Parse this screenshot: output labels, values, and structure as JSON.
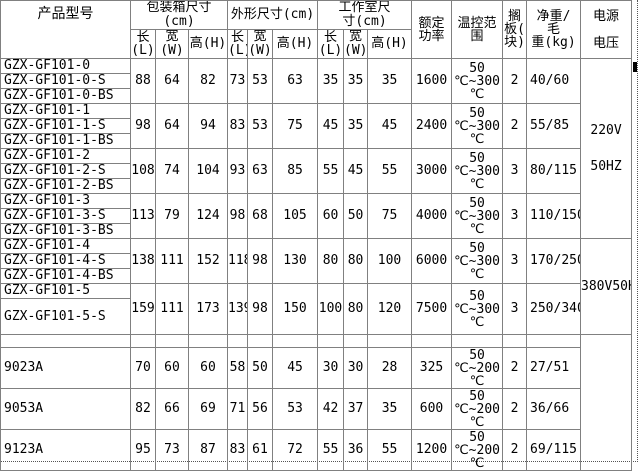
{
  "table": {
    "header": {
      "product_model": "产品型号",
      "packing_group": "包装箱尺寸(cm)",
      "outer_group": "外形尺寸(cm)",
      "chamber_group": "工作室尺\n寸(cm)",
      "rated_power": "额定\n功率",
      "temp_range": "温控范\n围",
      "shelf": "搁\n板(\n块)",
      "weight": "净重/\n毛\n重(kg)",
      "voltage": "电源\n电压",
      "length": "长\n(L)",
      "width": "宽(W)",
      "height": "高(H)"
    },
    "groups": [
      {
        "models": [
          "GZX-GF101-0",
          "GZX-GF101-0-S",
          "GZX-GF101-0-BS"
        ],
        "packing": [
          "88",
          "64",
          "82"
        ],
        "outer": [
          "73",
          "53",
          "63"
        ],
        "chamber": [
          "35",
          "35",
          "35"
        ],
        "power": "1600",
        "temp": "50\n℃~300\n℃",
        "shelf": "2",
        "weight": "40/60"
      },
      {
        "models": [
          "GZX-GF101-1",
          "GZX-GF101-1-S",
          "GZX-GF101-1-BS"
        ],
        "packing": [
          "98",
          "64",
          "94"
        ],
        "outer": [
          "83",
          "53",
          "75"
        ],
        "chamber": [
          "45",
          "35",
          "45"
        ],
        "power": "2400",
        "temp": "50\n℃~300\n℃",
        "shelf": "2",
        "weight": "55/85"
      },
      {
        "models": [
          "GZX-GF101-2",
          "GZX-GF101-2-S",
          "GZX-GF101-2-BS"
        ],
        "packing": [
          "108",
          "74",
          "104"
        ],
        "outer": [
          "93",
          "63",
          "85"
        ],
        "chamber": [
          "55",
          "45",
          "55"
        ],
        "power": "3000",
        "temp": "50\n℃~300\n℃",
        "shelf": "3",
        "weight": "80/115"
      },
      {
        "models": [
          "GZX-GF101-3",
          "GZX-GF101-3-S",
          "GZX-GF101-3-BS"
        ],
        "packing": [
          "113",
          "79",
          "124"
        ],
        "outer": [
          "98",
          "68",
          "105"
        ],
        "chamber": [
          "60",
          "50",
          "75"
        ],
        "power": "4000",
        "temp": "50\n℃~300\n℃",
        "shelf": "3",
        "weight": "110/150"
      },
      {
        "models": [
          "GZX-GF101-4",
          "GZX-GF101-4-S",
          "GZX-GF101-4-BS"
        ],
        "packing": [
          "138",
          "111",
          "152"
        ],
        "outer": [
          "118",
          "98",
          "130"
        ],
        "chamber": [
          "80",
          "80",
          "100"
        ],
        "power": "6000",
        "temp": "50\n℃~300\n℃",
        "shelf": "3",
        "weight": "170/250"
      },
      {
        "models": [
          "GZX-GF101-5",
          "GZX-GF101-5-S"
        ],
        "packing": [
          "159",
          "111",
          "173"
        ],
        "outer": [
          "139",
          "98",
          "150"
        ],
        "chamber": [
          "100",
          "80",
          "120"
        ],
        "power": "7500",
        "temp": "50\n℃~300\n℃",
        "shelf": "3",
        "weight": "250/340"
      }
    ],
    "voltage_cells": {
      "v220": "220V\n\n50HZ",
      "v380": "380V50HZ",
      "empty": ""
    },
    "simple_rows": [
      {
        "model": "9023A",
        "packing": [
          "70",
          "60",
          "60"
        ],
        "outer": [
          "58",
          "50",
          "45"
        ],
        "chamber": [
          "30",
          "30",
          "28"
        ],
        "power": "325",
        "temp": "50\n℃~200\n℃",
        "shelf": "2",
        "weight": "27/51"
      },
      {
        "model": "9053A",
        "packing": [
          "82",
          "66",
          "69"
        ],
        "outer": [
          "71",
          "56",
          "53"
        ],
        "chamber": [
          "42",
          "37",
          "35"
        ],
        "power": "600",
        "temp": "50\n℃~200\n℃",
        "shelf": "2",
        "weight": "36/66"
      },
      {
        "model": "9123A",
        "packing": [
          "95",
          "73",
          "87"
        ],
        "outer": [
          "83",
          "61",
          "72"
        ],
        "chamber": [
          "55",
          "36",
          "55"
        ],
        "power": "1200",
        "temp": "50\n℃~200\n℃",
        "shelf": "2",
        "weight": "69/115"
      }
    ],
    "colors": {
      "border": "#808080",
      "text": "#000000",
      "background": "#ffffff"
    }
  }
}
